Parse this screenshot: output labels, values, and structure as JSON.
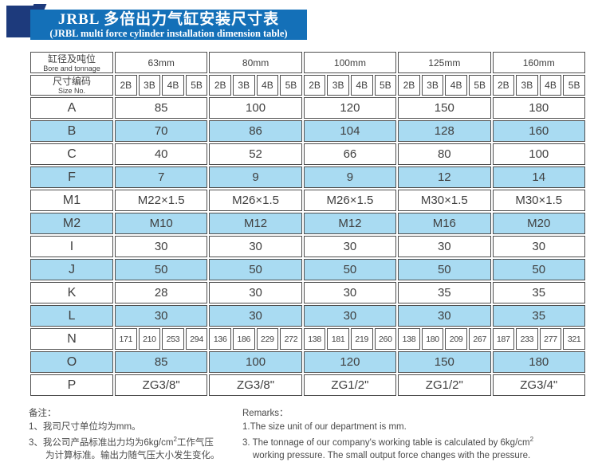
{
  "title": {
    "zh": "JRBL 多倍出力气缸安装尺寸表",
    "en": "(JRBL multi force cylinder installation dimension table)"
  },
  "table": {
    "header": {
      "bore_zh": "缸径及吨位",
      "bore_en": "Bore and tonnage",
      "size_zh": "尺寸编码",
      "size_en": "Size No.",
      "sizes": [
        "63mm",
        "80mm",
        "100mm",
        "125mm",
        "160mm"
      ],
      "sub_columns": [
        "2B",
        "3B",
        "4B",
        "5B"
      ]
    },
    "rows": [
      {
        "label": "A",
        "shaded": false,
        "merged": [
          "85",
          "100",
          "120",
          "150",
          "180"
        ]
      },
      {
        "label": "B",
        "shaded": true,
        "merged": [
          "70",
          "86",
          "104",
          "128",
          "160"
        ]
      },
      {
        "label": "C",
        "shaded": false,
        "merged": [
          "40",
          "52",
          "66",
          "80",
          "100"
        ]
      },
      {
        "label": "F",
        "shaded": true,
        "merged": [
          "7",
          "9",
          "9",
          "12",
          "14"
        ]
      },
      {
        "label": "M1",
        "shaded": false,
        "merged": [
          "M22×1.5",
          "M26×1.5",
          "M26×1.5",
          "M30×1.5",
          "M30×1.5"
        ]
      },
      {
        "label": "M2",
        "shaded": true,
        "merged": [
          "M10",
          "M12",
          "M12",
          "M16",
          "M20"
        ]
      },
      {
        "label": "I",
        "shaded": false,
        "merged": [
          "30",
          "30",
          "30",
          "30",
          "30"
        ]
      },
      {
        "label": "J",
        "shaded": true,
        "merged": [
          "50",
          "50",
          "50",
          "50",
          "50"
        ]
      },
      {
        "label": "K",
        "shaded": false,
        "merged": [
          "28",
          "30",
          "30",
          "35",
          "35"
        ]
      },
      {
        "label": "L",
        "shaded": true,
        "merged": [
          "30",
          "30",
          "30",
          "30",
          "35"
        ]
      },
      {
        "label": "N",
        "shaded": false,
        "cells": [
          "171",
          "210",
          "253",
          "294",
          "136",
          "186",
          "229",
          "272",
          "138",
          "181",
          "219",
          "260",
          "138",
          "180",
          "209",
          "267",
          "187",
          "233",
          "277",
          "321"
        ]
      },
      {
        "label": "O",
        "shaded": true,
        "merged": [
          "85",
          "100",
          "120",
          "150",
          "180"
        ]
      },
      {
        "label": "P",
        "shaded": false,
        "merged": [
          "ZG3/8\"",
          "ZG3/8\"",
          "ZG1/2\"",
          "ZG1/2\"",
          "ZG3/4\""
        ]
      }
    ]
  },
  "footnotes": {
    "zh": {
      "title": "备注：",
      "line1": "1、我司尺寸单位均为mm。",
      "line2_pre": "3、我公司产品标准出力均为6kg/cm",
      "line2_sup": "2",
      "line2_post": "工作气压",
      "line3": "为计算标准。输出力随气压大小发生变化。"
    },
    "en": {
      "title": "Remarks：",
      "line1": "1.The size unit of our department is mm.",
      "line2_pre": "3. The tonnage of our company's working table is calculated by 6kg/cm",
      "line2_sup": "2",
      "line3": "working pressure. The small output force changes with the pressure."
    }
  },
  "colors": {
    "banner_blue": "#1470b8",
    "banner_navy": "#1d3a7c",
    "header_gray": "#dcdcdc",
    "row_blue": "#a9dbf2",
    "border": "#4f4f4f"
  }
}
